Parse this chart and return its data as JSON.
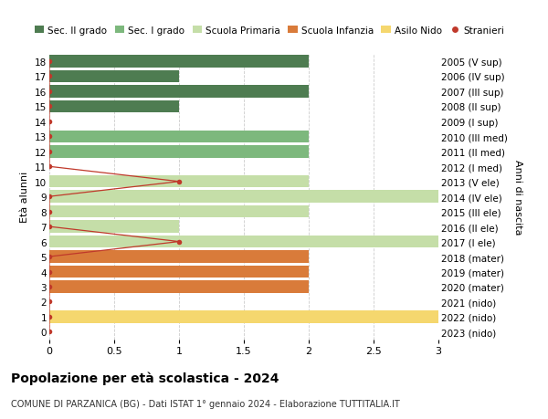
{
  "rows": [
    {
      "age": 18,
      "year_label": "2005 (V sup)",
      "value": 2,
      "color": "#4e7c51",
      "stranieri": 0
    },
    {
      "age": 17,
      "year_label": "2006 (IV sup)",
      "value": 1,
      "color": "#4e7c51",
      "stranieri": 0
    },
    {
      "age": 16,
      "year_label": "2007 (III sup)",
      "value": 2,
      "color": "#4e7c51",
      "stranieri": 0
    },
    {
      "age": 15,
      "year_label": "2008 (II sup)",
      "value": 1,
      "color": "#4e7c51",
      "stranieri": 0
    },
    {
      "age": 14,
      "year_label": "2009 (I sup)",
      "value": 0,
      "color": "#4e7c51",
      "stranieri": 0
    },
    {
      "age": 13,
      "year_label": "2010 (III med)",
      "value": 2,
      "color": "#7db87d",
      "stranieri": 0
    },
    {
      "age": 12,
      "year_label": "2011 (II med)",
      "value": 2,
      "color": "#7db87d",
      "stranieri": 0
    },
    {
      "age": 11,
      "year_label": "2012 (I med)",
      "value": 0,
      "color": "#7db87d",
      "stranieri": 0
    },
    {
      "age": 10,
      "year_label": "2013 (V ele)",
      "value": 2,
      "color": "#c5dea8",
      "stranieri": 1
    },
    {
      "age": 9,
      "year_label": "2014 (IV ele)",
      "value": 3,
      "color": "#c5dea8",
      "stranieri": 0
    },
    {
      "age": 8,
      "year_label": "2015 (III ele)",
      "value": 2,
      "color": "#c5dea8",
      "stranieri": 0
    },
    {
      "age": 7,
      "year_label": "2016 (II ele)",
      "value": 1,
      "color": "#c5dea8",
      "stranieri": 0
    },
    {
      "age": 6,
      "year_label": "2017 (I ele)",
      "value": 3,
      "color": "#c5dea8",
      "stranieri": 1
    },
    {
      "age": 5,
      "year_label": "2018 (mater)",
      "value": 2,
      "color": "#d97b3a",
      "stranieri": 0
    },
    {
      "age": 4,
      "year_label": "2019 (mater)",
      "value": 2,
      "color": "#d97b3a",
      "stranieri": 0
    },
    {
      "age": 3,
      "year_label": "2020 (mater)",
      "value": 2,
      "color": "#d97b3a",
      "stranieri": 0
    },
    {
      "age": 2,
      "year_label": "2021 (nido)",
      "value": 0,
      "color": "#f5d76e",
      "stranieri": 0
    },
    {
      "age": 1,
      "year_label": "2022 (nido)",
      "value": 3,
      "color": "#f5d76e",
      "stranieri": 0
    },
    {
      "age": 0,
      "year_label": "2023 (nido)",
      "value": 0,
      "color": "#f5d76e",
      "stranieri": 0
    }
  ],
  "stranieri_color": "#c0392b",
  "legend_labels": [
    "Sec. II grado",
    "Sec. I grado",
    "Scuola Primaria",
    "Scuola Infanzia",
    "Asilo Nido",
    "Stranieri"
  ],
  "legend_colors": [
    "#4e7c51",
    "#7db87d",
    "#c5dea8",
    "#d97b3a",
    "#f5d76e",
    "#c0392b"
  ],
  "ylabel_left": "Età alunni",
  "ylabel_right": "Anni di nascita",
  "title": "Popolazione per età scolastica - 2024",
  "subtitle": "COMUNE DI PARZANICA (BG) - Dati ISTAT 1° gennaio 2024 - Elaborazione TUTTITALIA.IT",
  "xlim": [
    0,
    3.0
  ],
  "xticks": [
    0,
    0.5,
    1.0,
    1.5,
    2.0,
    2.5,
    3.0
  ],
  "bg_color": "#ffffff",
  "grid_color": "#cccccc",
  "bar_height": 0.82,
  "fig_width": 6.0,
  "fig_height": 4.6,
  "dpi": 100
}
